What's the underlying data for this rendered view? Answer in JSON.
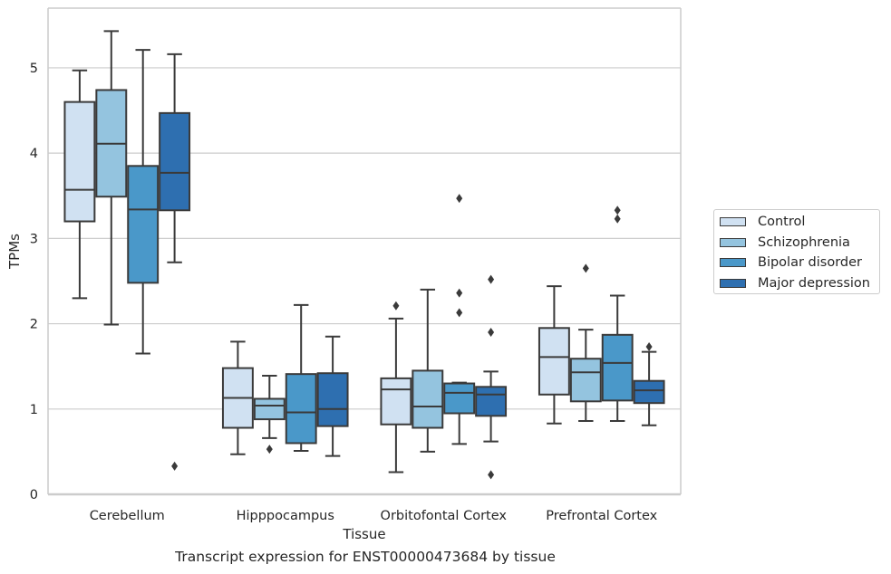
{
  "caption": "Transcript expression for ENST00000473684 by tissue",
  "colors": {
    "Control": "#d0e1f2",
    "Schizophrenia": "#94c4df",
    "Bipolar disorder": "#4a98c9",
    "Major depression": "#2e6fb0"
  },
  "chart_data": {
    "type": "box",
    "title": "",
    "xlabel": "Tissue",
    "ylabel": "TPMs",
    "ylim": [
      0,
      5.7
    ],
    "yticks": [
      0,
      1,
      2,
      3,
      4,
      5
    ],
    "grid": "horizontal",
    "legend_position": "right",
    "categories": [
      "Cerebellum",
      "Hipppocampus",
      "Orbitofontal Cortex",
      "Prefrontal Cortex"
    ],
    "series": [
      {
        "name": "Control",
        "boxes": [
          {
            "whisker_low": 2.3,
            "q1": 3.2,
            "median": 3.57,
            "q3": 4.6,
            "whisker_high": 4.97,
            "outliers": []
          },
          {
            "whisker_low": 0.47,
            "q1": 0.78,
            "median": 1.13,
            "q3": 1.48,
            "whisker_high": 1.79,
            "outliers": []
          },
          {
            "whisker_low": 0.26,
            "q1": 0.82,
            "median": 1.23,
            "q3": 1.36,
            "whisker_high": 2.06,
            "outliers": [
              2.21
            ]
          },
          {
            "whisker_low": 0.83,
            "q1": 1.17,
            "median": 1.61,
            "q3": 1.95,
            "whisker_high": 2.44,
            "outliers": []
          }
        ]
      },
      {
        "name": "Schizophrenia",
        "boxes": [
          {
            "whisker_low": 1.99,
            "q1": 3.49,
            "median": 4.11,
            "q3": 4.74,
            "whisker_high": 5.43,
            "outliers": []
          },
          {
            "whisker_low": 0.66,
            "q1": 0.88,
            "median": 1.04,
            "q3": 1.12,
            "whisker_high": 1.39,
            "outliers": [
              0.53
            ]
          },
          {
            "whisker_low": 0.5,
            "q1": 0.78,
            "median": 1.03,
            "q3": 1.45,
            "whisker_high": 2.4,
            "outliers": []
          },
          {
            "whisker_low": 0.86,
            "q1": 1.09,
            "median": 1.43,
            "q3": 1.59,
            "whisker_high": 1.93,
            "outliers": [
              2.65
            ]
          }
        ]
      },
      {
        "name": "Bipolar disorder",
        "boxes": [
          {
            "whisker_low": 1.65,
            "q1": 2.48,
            "median": 3.34,
            "q3": 3.85,
            "whisker_high": 5.21,
            "outliers": []
          },
          {
            "whisker_low": 0.51,
            "q1": 0.6,
            "median": 0.96,
            "q3": 1.41,
            "whisker_high": 2.22,
            "outliers": []
          },
          {
            "whisker_low": 0.59,
            "q1": 0.95,
            "median": 1.19,
            "q3": 1.3,
            "whisker_high": 1.31,
            "outliers": [
              2.13,
              2.36,
              3.47
            ]
          },
          {
            "whisker_low": 0.86,
            "q1": 1.1,
            "median": 1.54,
            "q3": 1.87,
            "whisker_high": 2.33,
            "outliers": [
              3.23,
              3.33
            ]
          }
        ]
      },
      {
        "name": "Major depression",
        "boxes": [
          {
            "whisker_low": 2.72,
            "q1": 3.33,
            "median": 3.77,
            "q3": 4.47,
            "whisker_high": 5.16,
            "outliers": [
              0.33
            ]
          },
          {
            "whisker_low": 0.45,
            "q1": 0.8,
            "median": 1.0,
            "q3": 1.42,
            "whisker_high": 1.85,
            "outliers": []
          },
          {
            "whisker_low": 0.62,
            "q1": 0.92,
            "median": 1.17,
            "q3": 1.26,
            "whisker_high": 1.44,
            "outliers": [
              0.23,
              1.9,
              2.52
            ]
          },
          {
            "whisker_low": 0.81,
            "q1": 1.07,
            "median": 1.22,
            "q3": 1.33,
            "whisker_high": 1.67,
            "outliers": [
              1.73
            ]
          }
        ]
      }
    ]
  }
}
